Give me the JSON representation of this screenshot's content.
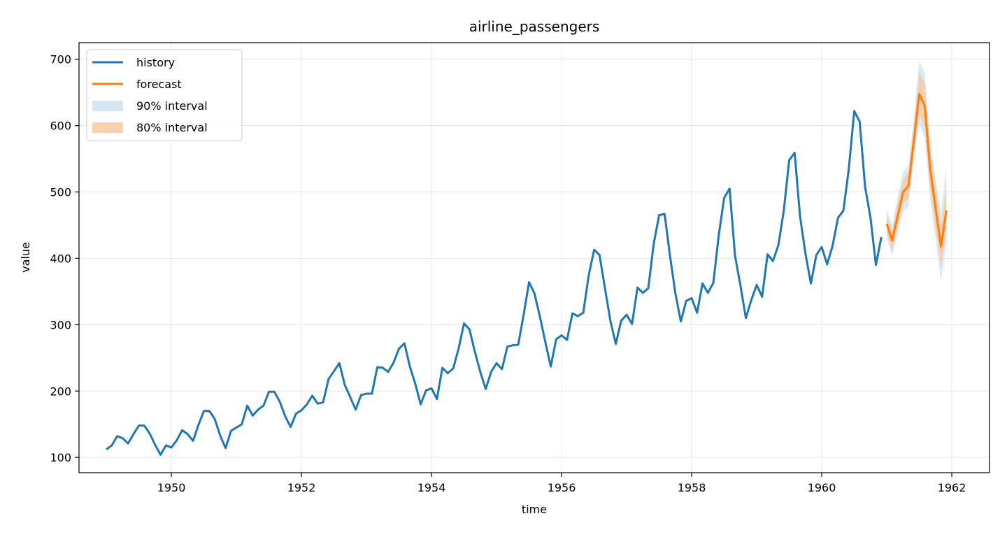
{
  "chart_data": {
    "type": "line",
    "title": "airline_passengers",
    "xlabel": "time",
    "ylabel": "value",
    "xlim": [
      1948.58,
      1962.58
    ],
    "ylim": [
      77,
      725
    ],
    "x_ticks": [
      1950,
      1952,
      1954,
      1956,
      1958,
      1960,
      1962
    ],
    "x_tick_labels": [
      "1950",
      "1952",
      "1954",
      "1956",
      "1958",
      "1960",
      "1962"
    ],
    "y_ticks": [
      100,
      200,
      300,
      400,
      500,
      600,
      700
    ],
    "y_tick_labels": [
      "100",
      "200",
      "300",
      "400",
      "500",
      "600",
      "700"
    ],
    "grid": true,
    "legend_position": "top-left",
    "colors": {
      "history": "#1f77b4",
      "forecast": "#ff7f0e",
      "interval90": "#cfe3f1",
      "interval80": "#f9c9a0"
    },
    "legend": [
      {
        "label": "history",
        "kind": "line",
        "color": "#1f77b4"
      },
      {
        "label": "forecast",
        "kind": "line",
        "color": "#ff7f0e"
      },
      {
        "label": "90% interval",
        "kind": "patch",
        "color": "#cfe3f1"
      },
      {
        "label": "80% interval",
        "kind": "patch",
        "color": "#f9c9a0"
      }
    ],
    "history": {
      "name": "history",
      "start": "1949-01",
      "frequency": "monthly",
      "values": [
        112,
        118,
        132,
        129,
        121,
        135,
        148,
        148,
        136,
        119,
        104,
        118,
        115,
        126,
        141,
        135,
        125,
        149,
        170,
        170,
        158,
        133,
        114,
        140,
        145,
        150,
        178,
        163,
        172,
        178,
        199,
        199,
        184,
        162,
        146,
        166,
        171,
        180,
        193,
        181,
        183,
        218,
        230,
        242,
        209,
        191,
        172,
        194,
        196,
        196,
        236,
        235,
        229,
        243,
        264,
        272,
        237,
        211,
        180,
        201,
        204,
        188,
        235,
        227,
        234,
        264,
        302,
        293,
        259,
        229,
        203,
        229,
        242,
        233,
        267,
        269,
        270,
        315,
        364,
        347,
        312,
        274,
        237,
        278,
        284,
        277,
        317,
        313,
        318,
        374,
        413,
        405,
        355,
        306,
        271,
        306,
        315,
        301,
        356,
        348,
        355,
        422,
        465,
        467,
        404,
        347,
        305,
        336,
        340,
        318,
        362,
        348,
        363,
        435,
        491,
        505,
        404,
        359,
        310,
        337,
        360,
        342,
        406,
        396,
        420,
        472,
        548,
        559,
        463,
        407,
        362,
        405,
        417,
        391,
        419,
        461,
        472,
        535,
        622,
        606,
        508,
        461,
        390,
        432
      ]
    },
    "forecast": {
      "name": "forecast",
      "start": "1961-01",
      "frequency": "monthly",
      "values": [
        452,
        427,
        463,
        500,
        509,
        578,
        648,
        630,
        535,
        476,
        418,
        472
      ],
      "lower80": [
        438,
        412,
        446,
        483,
        490,
        556,
        618,
        598,
        506,
        445,
        388,
        440
      ],
      "upper80": [
        466,
        442,
        482,
        518,
        529,
        600,
        680,
        664,
        566,
        507,
        450,
        505
      ],
      "lower90": [
        430,
        404,
        437,
        470,
        478,
        546,
        603,
        582,
        490,
        430,
        365,
        420
      ],
      "upper90": [
        474,
        450,
        493,
        530,
        540,
        612,
        697,
        680,
        582,
        522,
        470,
        538
      ]
    }
  }
}
